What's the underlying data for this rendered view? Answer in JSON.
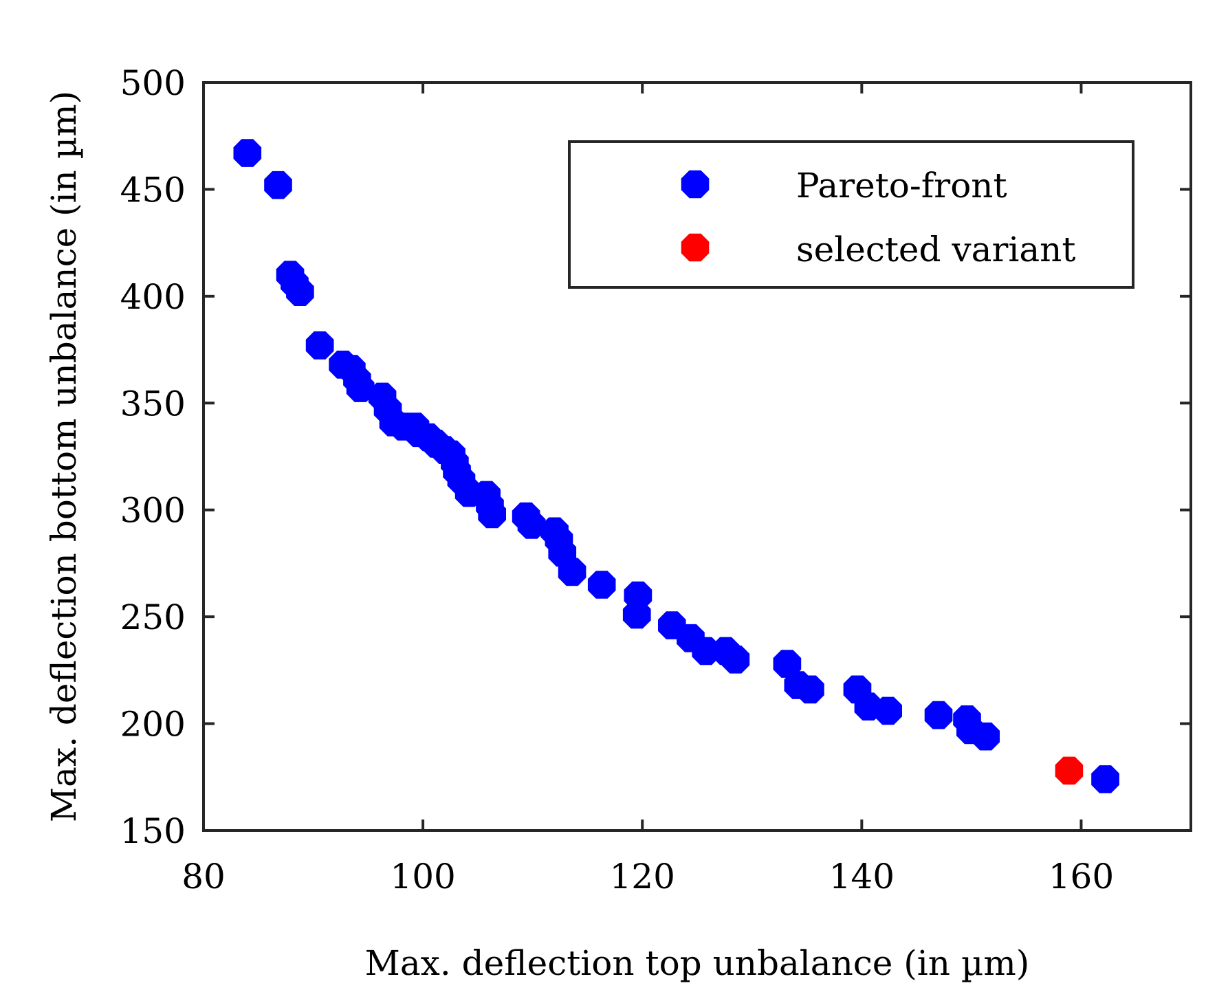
{
  "chart_data": {
    "type": "scatter",
    "title": "",
    "xlabel": "Max. deflection top unbalance (in µm)",
    "ylabel": "Max. deflection bottom unbalance (in µm)",
    "xlim": [
      80,
      170
    ],
    "ylim": [
      150,
      500
    ],
    "xticks": [
      80,
      100,
      120,
      140,
      160
    ],
    "yticks": [
      150,
      200,
      250,
      300,
      350,
      400,
      450,
      500
    ],
    "grid": false,
    "legend_position": "top-right",
    "series": [
      {
        "name": "Pareto-front",
        "color": "#0000ff",
        "points": [
          [
            84.0,
            467
          ],
          [
            86.8,
            452
          ],
          [
            87.9,
            410
          ],
          [
            88.3,
            406
          ],
          [
            88.8,
            402
          ],
          [
            90.6,
            377
          ],
          [
            92.7,
            368
          ],
          [
            93.5,
            366
          ],
          [
            94.0,
            361
          ],
          [
            94.3,
            357
          ],
          [
            96.3,
            353
          ],
          [
            96.8,
            347
          ],
          [
            97.3,
            341
          ],
          [
            98.2,
            339
          ],
          [
            99.3,
            339
          ],
          [
            99.6,
            336
          ],
          [
            100.5,
            334
          ],
          [
            101.2,
            331
          ],
          [
            102.0,
            328
          ],
          [
            102.6,
            326
          ],
          [
            102.9,
            322
          ],
          [
            103.1,
            318
          ],
          [
            103.5,
            314
          ],
          [
            104.2,
            308
          ],
          [
            105.8,
            307
          ],
          [
            106.1,
            302
          ],
          [
            106.3,
            298
          ],
          [
            109.4,
            297
          ],
          [
            109.9,
            293
          ],
          [
            112.0,
            290
          ],
          [
            112.4,
            286
          ],
          [
            112.7,
            280
          ],
          [
            113.6,
            271
          ],
          [
            116.3,
            265
          ],
          [
            119.6,
            260
          ],
          [
            119.5,
            251
          ],
          [
            122.7,
            246
          ],
          [
            124.4,
            240
          ],
          [
            125.8,
            234
          ],
          [
            127.6,
            234
          ],
          [
            128.5,
            230
          ],
          [
            133.2,
            228
          ],
          [
            134.2,
            218
          ],
          [
            135.3,
            216
          ],
          [
            139.6,
            216
          ],
          [
            140.6,
            208
          ],
          [
            142.4,
            206
          ],
          [
            147.0,
            204
          ],
          [
            149.6,
            202
          ],
          [
            149.9,
            197
          ],
          [
            151.3,
            194
          ],
          [
            162.2,
            174
          ]
        ]
      },
      {
        "name": "selected variant",
        "color": "#ff0000",
        "points": [
          [
            158.9,
            178
          ]
        ]
      }
    ]
  }
}
